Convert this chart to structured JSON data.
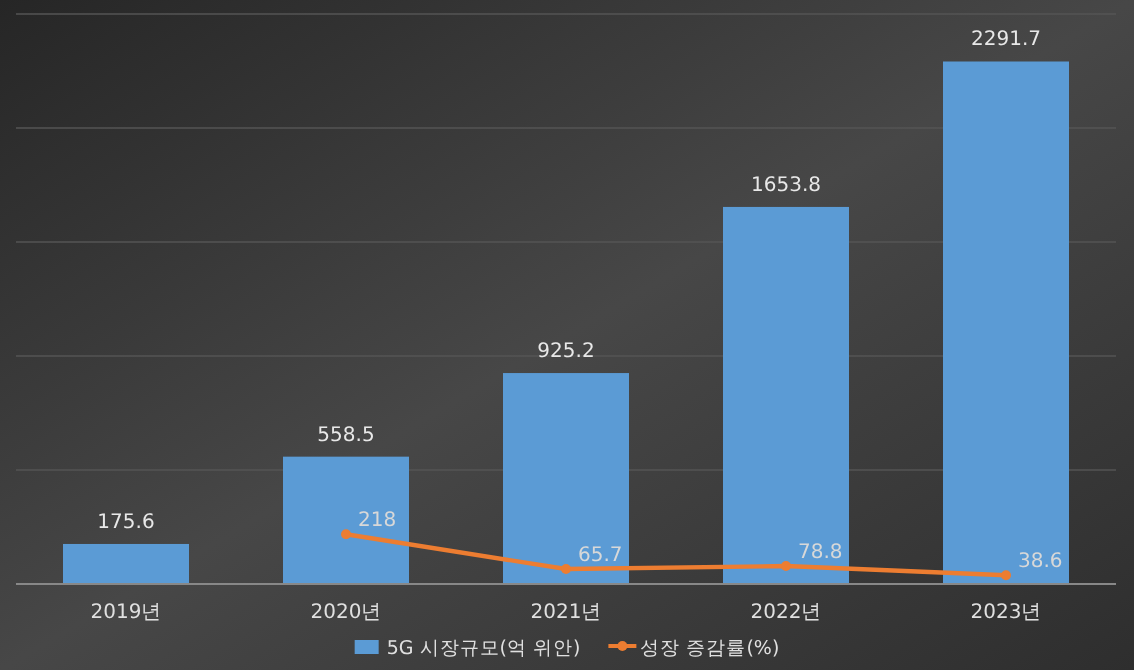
{
  "chart_data": {
    "type": "bar",
    "categories": [
      "2019년",
      "2020년",
      "2021년",
      "2022년",
      "2023년"
    ],
    "series": [
      {
        "name": "5G 시장규모(억 위안)",
        "color": "#5b9bd5",
        "values": [
          175.6,
          558.5,
          925.2,
          1653.8,
          2291.7
        ]
      },
      {
        "name": "성장 증감률(%)",
        "type": "line",
        "color": "#ed7d31",
        "marker": "circle",
        "values": [
          null,
          218,
          65.7,
          78.8,
          38.6
        ]
      }
    ],
    "ylim": [
      0,
      2500
    ],
    "yticks": [
      {
        "value": 0,
        "label": null
      },
      {
        "value": 500,
        "label": null
      },
      {
        "value": 1000,
        "label": null
      },
      {
        "value": 1500,
        "label": null
      },
      {
        "value": 2000,
        "label": null
      },
      {
        "value": 2500,
        "label": null
      }
    ],
    "grid": "y",
    "tick_labels": "x",
    "data_labels": true,
    "legend": "bottom"
  }
}
